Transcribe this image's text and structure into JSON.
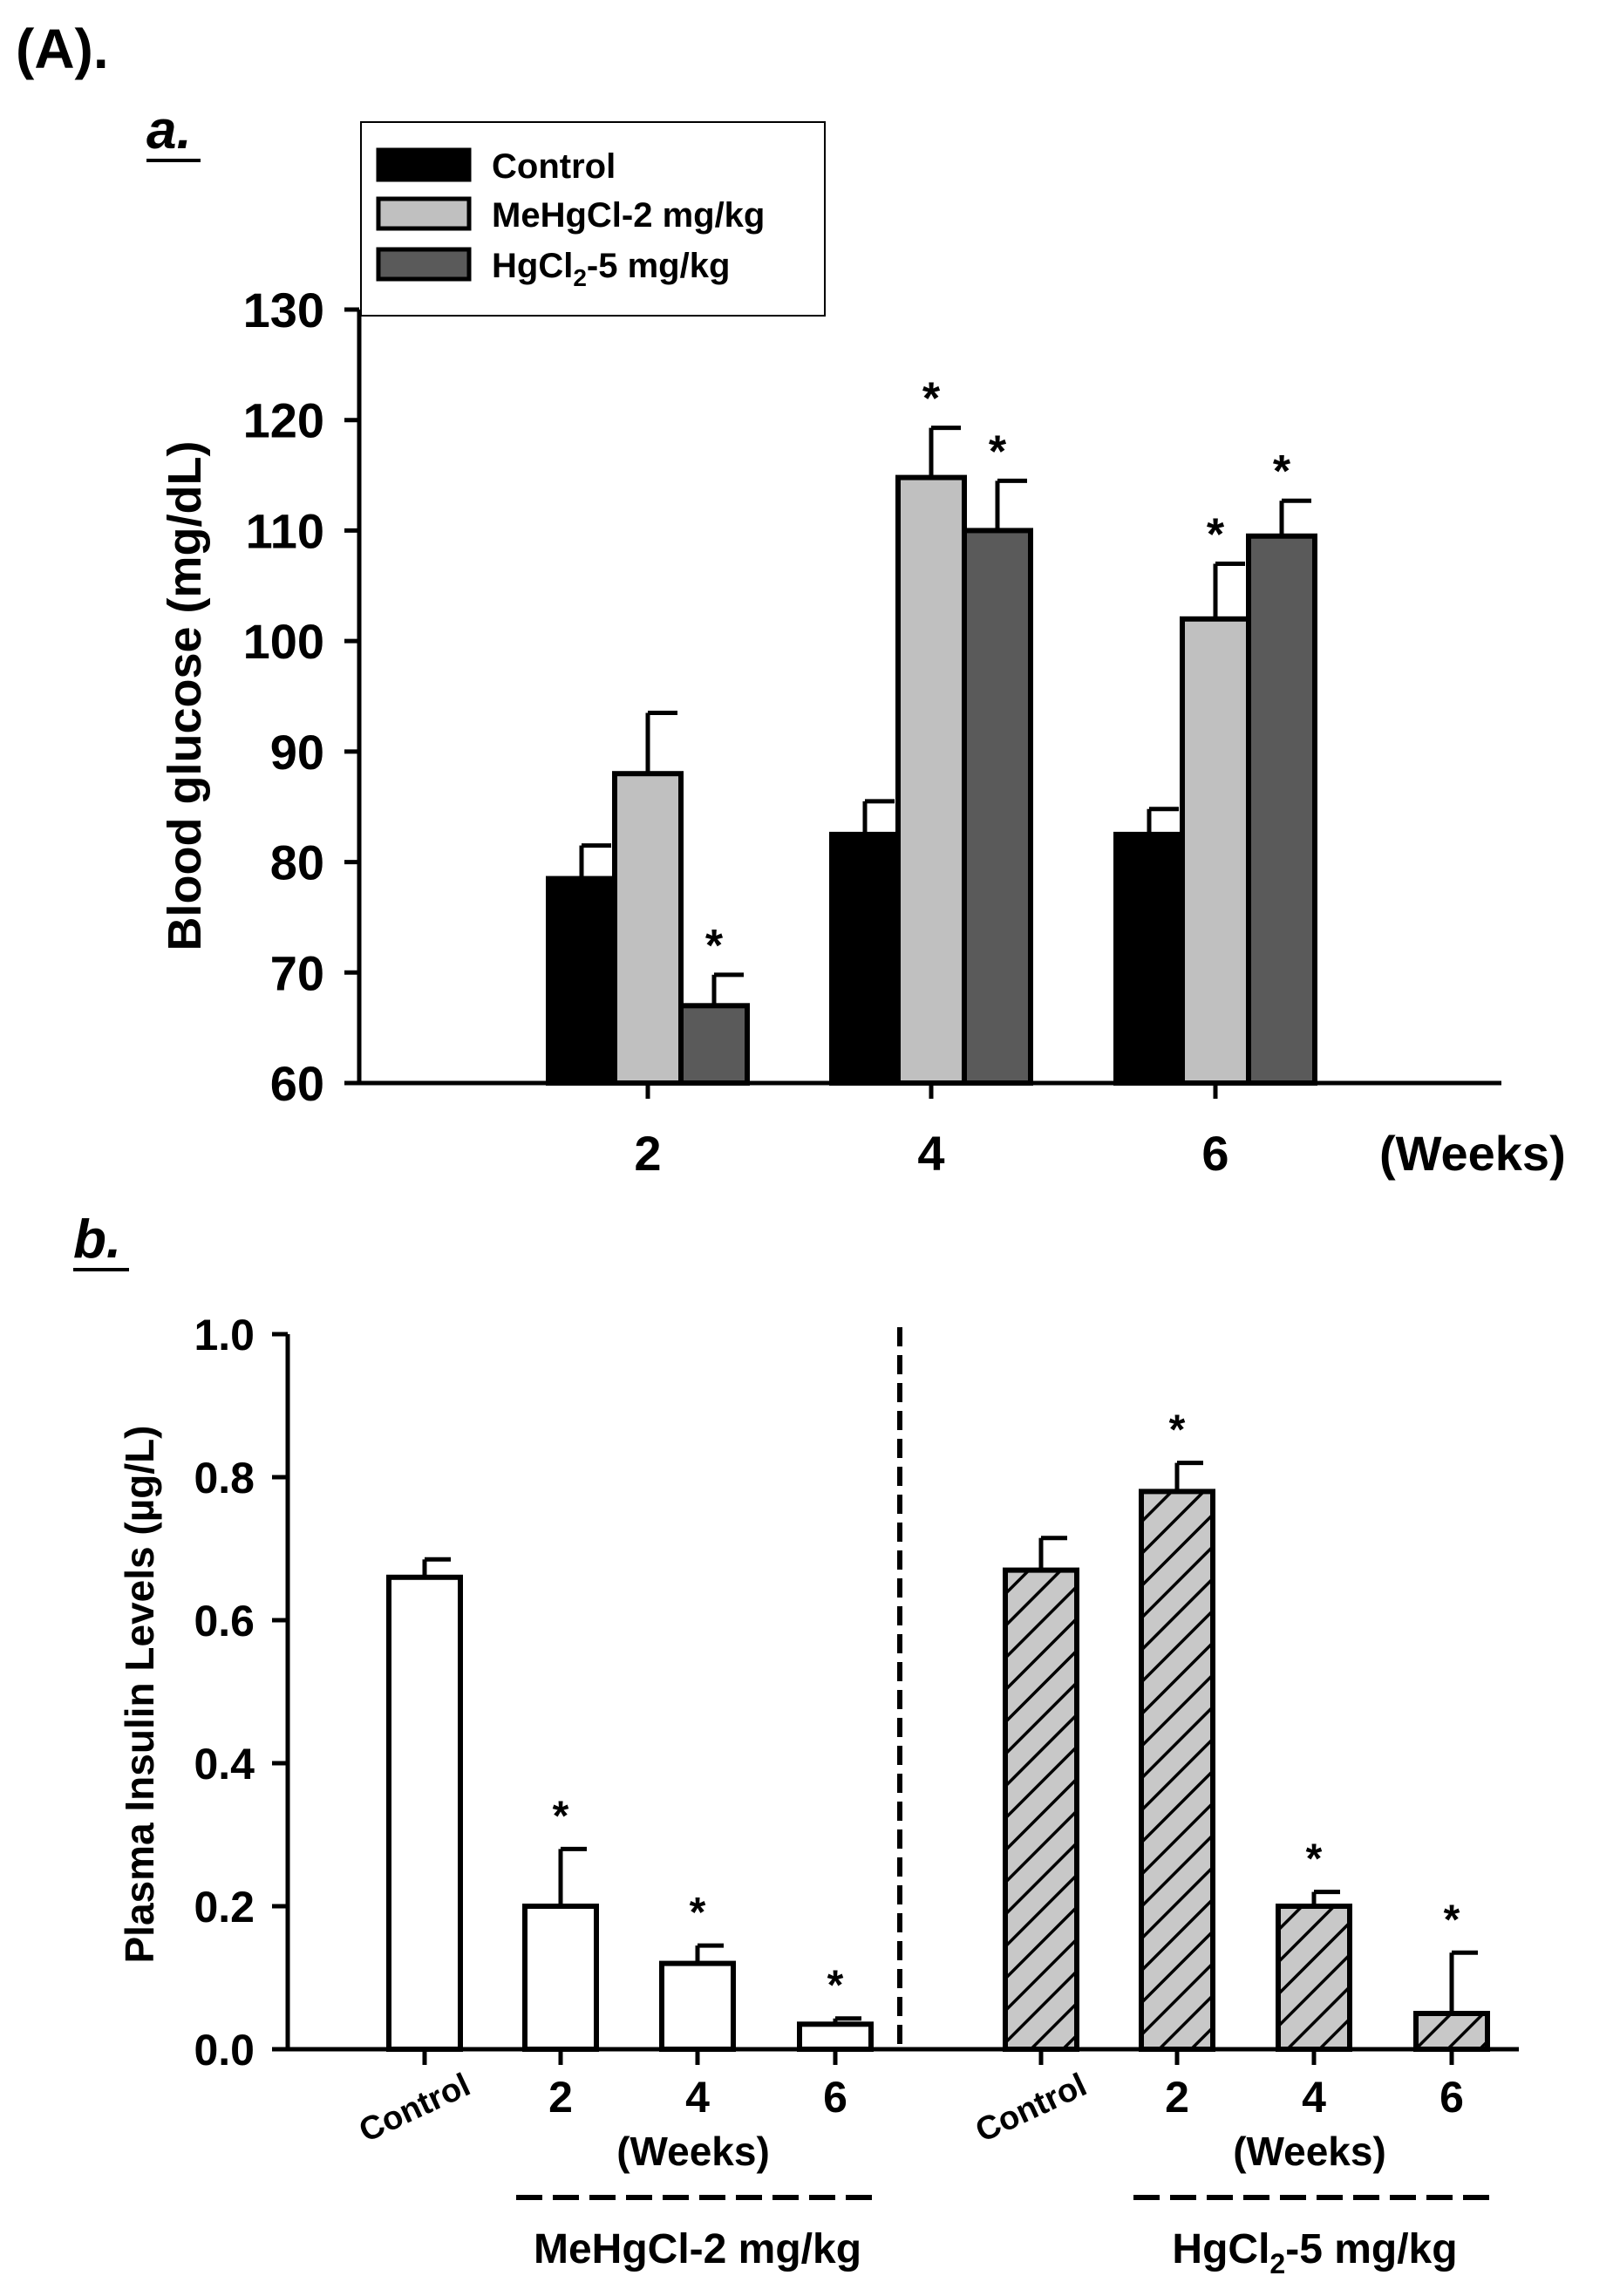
{
  "figure_label": "(A).",
  "colors": {
    "control": "#000000",
    "mehg": "#c0c0c0",
    "hgcl2": "#5a5a5a",
    "insulin_open": "#ffffff",
    "insulin_hatch_bg": "#c8c8c8"
  },
  "chart_data": [
    {
      "type": "bar",
      "panel_label": "a.",
      "categories": [
        "2",
        "4",
        "6"
      ],
      "x_unit_label": "(Weeks)",
      "ylabel": "Blood glucose (mg/dL)",
      "ylim": [
        60,
        130
      ],
      "yticks": [
        60,
        70,
        80,
        90,
        100,
        110,
        120,
        130
      ],
      "legend": [
        "Control",
        "MeHgCl-2 mg/kg",
        "HgCl"
      ],
      "legend_hg_sub": "2",
      "legend_hg_suffix": "-5 mg/kg",
      "legend_position": "top-left",
      "series": [
        {
          "name": "Control",
          "color": "#000000",
          "values": [
            78.5,
            82.5,
            82.5
          ],
          "errors": [
            3.0,
            3.0,
            2.3
          ],
          "significant": [
            false,
            false,
            false
          ]
        },
        {
          "name": "MeHgCl-2 mg/kg",
          "color": "#c0c0c0",
          "values": [
            88,
            114.8,
            102
          ],
          "errors": [
            5.5,
            4.5,
            5.0
          ],
          "significant": [
            false,
            true,
            true
          ]
        },
        {
          "name": "HgCl2-5 mg/kg",
          "color": "#5a5a5a",
          "values": [
            67,
            110,
            109.5
          ],
          "errors": [
            2.8,
            4.5,
            3.2
          ],
          "significant": [
            true,
            true,
            true
          ]
        }
      ],
      "significance_marker": "*"
    },
    {
      "type": "bar",
      "panel_label": "b.",
      "ylabel": "Plasma Insulin Levels (µg/L)",
      "ylim": [
        0,
        1.0
      ],
      "yticks": [
        "0.0",
        "0.2",
        "0.4",
        "0.6",
        "0.8",
        "1.0"
      ],
      "groups": [
        {
          "name": "MeHgCl-2 mg/kg",
          "fill": "open",
          "weeks_label": "(Weeks)",
          "categories": [
            "Control",
            "2",
            "4",
            "6"
          ],
          "values": [
            0.66,
            0.2,
            0.12,
            0.035
          ],
          "errors": [
            0.025,
            0.08,
            0.025,
            0.008
          ],
          "significant": [
            false,
            true,
            true,
            true
          ]
        },
        {
          "name": "HgCl",
          "name_sub": "2",
          "name_suffix": "-5 mg/kg",
          "fill": "hatched",
          "weeks_label": "(Weeks)",
          "categories": [
            "Control",
            "2",
            "4",
            "6"
          ],
          "values": [
            0.67,
            0.78,
            0.2,
            0.05
          ],
          "errors": [
            0.045,
            0.04,
            0.02,
            0.085
          ],
          "significant": [
            false,
            true,
            true,
            true
          ]
        }
      ],
      "significance_marker": "*"
    }
  ]
}
